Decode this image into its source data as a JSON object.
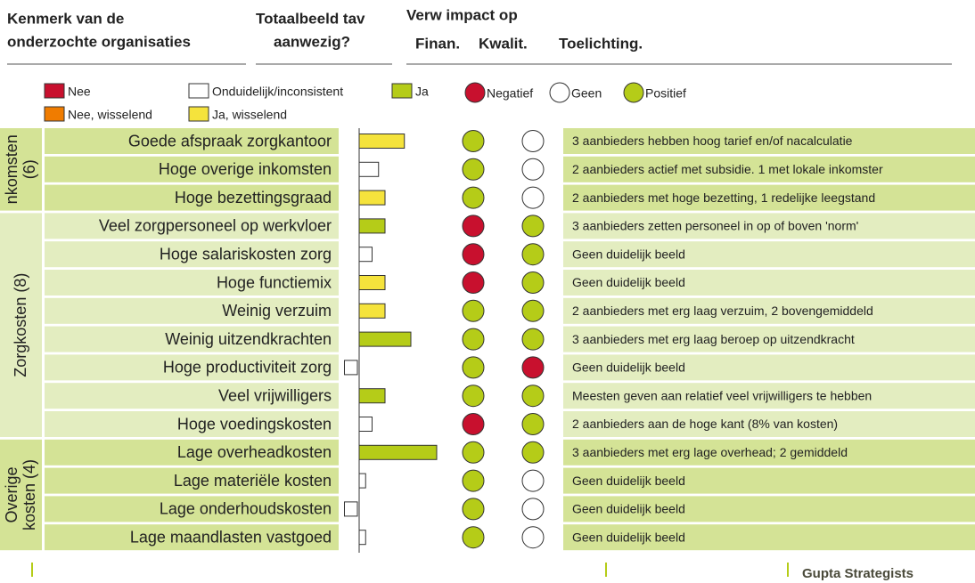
{
  "header": {
    "col1": [
      "Kenmerk van de",
      "onderzochte organisaties"
    ],
    "col2": [
      "Totaalbeeld tav",
      "aanwezig?"
    ],
    "col3": "Verw impact op",
    "finan": "Finan.",
    "kwalit": "Kwalit.",
    "toel": "Toelichting."
  },
  "legend": [
    {
      "name": "Nee",
      "color": "#c8102e",
      "shape": "square"
    },
    {
      "name": "Onduidelijk/inconsistent",
      "color": "#ffffff",
      "shape": "square"
    },
    {
      "name": "Ja",
      "color": "#b5cc18",
      "shape": "square"
    },
    {
      "name": "Negatief",
      "color": "#c8102e",
      "shape": "circle"
    },
    {
      "name": "Geen",
      "color": "#ffffff",
      "shape": "circle"
    },
    {
      "name": "Positief",
      "color": "#b5cc18",
      "shape": "circle"
    },
    {
      "name": "Nee, wisselend",
      "color": "#f07c00",
      "shape": "square"
    },
    {
      "name": "Ja, wisselend",
      "color": "#f5e33c",
      "shape": "square"
    }
  ],
  "groups": [
    {
      "label": [
        "nkomsten",
        "(6)"
      ],
      "bg": "#d4e396",
      "rows": [
        {
          "label": "Goede afspraak zorgkantoor",
          "bar": 7,
          "bar_color": "#f5e33c",
          "finan": "#b5cc18",
          "kwalit": "#ffffff",
          "note": "3 aanbieders hebben hoog tarief en/of nacalculatie"
        },
        {
          "label": "Hoge overige inkomsten",
          "bar": 3,
          "bar_color": "#ffffff",
          "finan": "#b5cc18",
          "kwalit": "#ffffff",
          "note": "2 aanbieders actief met subsidie. 1 met lokale inkomster"
        },
        {
          "label": "Hoge bezettingsgraad",
          "bar": 4,
          "bar_color": "#f5e33c",
          "finan": "#b5cc18",
          "kwalit": "#ffffff",
          "note": "2 aanbieders met hoge bezetting, 1 redelijke leegstand"
        }
      ]
    },
    {
      "label": [
        "Zorgkosten (8)"
      ],
      "bg": "#e3edc0",
      "rows": [
        {
          "label": "Veel zorgpersoneel op werkvloer",
          "bar": 4,
          "bar_color": "#b5cc18",
          "finan": "#c8102e",
          "kwalit": "#b5cc18",
          "note": "3 aanbieders zetten personeel in op of boven 'norm'"
        },
        {
          "label": "Hoge salariskosten zorg",
          "bar": 2,
          "bar_color": "#ffffff",
          "finan": "#c8102e",
          "kwalit": "#b5cc18",
          "note": "Geen duidelijk beeld"
        },
        {
          "label": "Hoge functiemix",
          "bar": 4,
          "bar_color": "#f5e33c",
          "finan": "#c8102e",
          "kwalit": "#b5cc18",
          "note": "Geen duidelijk beeld"
        },
        {
          "label": "Weinig verzuim",
          "bar": 4,
          "bar_color": "#f5e33c",
          "finan": "#b5cc18",
          "kwalit": "#b5cc18",
          "note": "2 aanbieders met erg laag verzuim, 2 bovengemiddeld"
        },
        {
          "label": "Weinig uitzendkrachten",
          "bar": 8,
          "bar_color": "#b5cc18",
          "finan": "#b5cc18",
          "kwalit": "#b5cc18",
          "note": "3 aanbieders met erg laag beroep op uitzendkracht"
        },
        {
          "label": "Hoge productiviteit zorg",
          "bar": -2,
          "bar_color": "#ffffff",
          "finan": "#b5cc18",
          "kwalit": "#c8102e",
          "note": "Geen duidelijk beeld"
        },
        {
          "label": "Veel vrijwilligers",
          "bar": 4,
          "bar_color": "#b5cc18",
          "finan": "#b5cc18",
          "kwalit": "#b5cc18",
          "note": "Meesten geven aan relatief veel vrijwilligers te hebben"
        },
        {
          "label": "Hoge voedingskosten",
          "bar": 2,
          "bar_color": "#ffffff",
          "finan": "#c8102e",
          "kwalit": "#b5cc18",
          "note": "2 aanbieders aan de hoge kant (8% van kosten)"
        }
      ]
    },
    {
      "label": [
        "Overige",
        "kosten (4)"
      ],
      "bg": "#d4e396",
      "rows": [
        {
          "label": "Lage overheadkosten",
          "bar": 12,
          "bar_color": "#b5cc18",
          "finan": "#b5cc18",
          "kwalit": "#b5cc18",
          "note": "3 aanbieders met erg lage overhead; 2 gemiddeld"
        },
        {
          "label": "Lage materiële kosten",
          "bar": 1,
          "bar_color": "#ffffff",
          "finan": "#b5cc18",
          "kwalit": "#ffffff",
          "note": "Geen duidelijk beeld"
        },
        {
          "label": "Lage onderhoudskosten",
          "bar": -2,
          "bar_color": "#ffffff",
          "finan": "#b5cc18",
          "kwalit": "#ffffff",
          "note": "Geen duidelijk beeld"
        },
        {
          "label": "Lage maandlasten vastgoed",
          "bar": 1,
          "bar_color": "#ffffff",
          "finan": "#b5cc18",
          "kwalit": "#ffffff",
          "note": "Geen duidelijk beeld"
        }
      ]
    }
  ],
  "footer": "Gupta Strategists"
}
